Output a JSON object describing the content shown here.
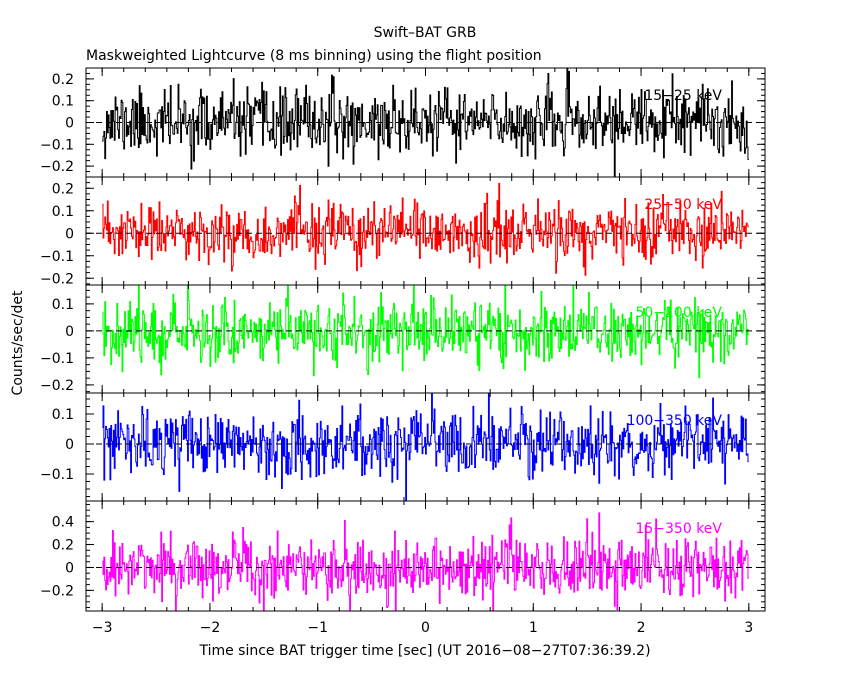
{
  "chart_data": {
    "type": "line",
    "title": "Swift–BAT GRB",
    "subtitle": "Maskweighted Lightcurve (8 ms binning) using the flight position",
    "xlabel": "Time since BAT trigger time [sec] (UT 2016−08−27T07:36:39.2)",
    "ylabel": "Counts/sec/det",
    "xlim": [
      -3.15,
      3.15
    ],
    "x_ticks": [
      -3,
      -2,
      -1,
      0,
      1,
      2,
      3
    ],
    "x_tick_labels": [
      "−3",
      "−2",
      "−1",
      "0",
      "1",
      "2",
      "3"
    ],
    "bin_width_sec": 0.008,
    "x_range_data": [
      -3,
      3
    ],
    "grid": false,
    "panels": [
      {
        "band_label": "15−25 keV",
        "color": "#000000",
        "ylim": [
          -0.25,
          0.25
        ],
        "y_ticks": [
          -0.2,
          -0.1,
          0,
          0.1,
          0.2
        ],
        "y_tick_labels": [
          "−0.2",
          "−0.1",
          "0",
          "0.1",
          "0.2"
        ],
        "noise_sigma": 0.075,
        "seed": 11
      },
      {
        "band_label": "25−50 keV",
        "color": "#ff0000",
        "ylim": [
          -0.23,
          0.25
        ],
        "y_ticks": [
          -0.2,
          -0.1,
          0,
          0.1,
          0.2
        ],
        "y_tick_labels": [
          "−0.2",
          "−0.1",
          "0",
          "0.1",
          "0.2"
        ],
        "noise_sigma": 0.065,
        "seed": 23
      },
      {
        "band_label": "50−100 keV",
        "color": "#00ff00",
        "ylim": [
          -0.23,
          0.17
        ],
        "y_ticks": [
          -0.2,
          -0.1,
          0,
          0.1
        ],
        "y_tick_labels": [
          "−0.2",
          "−0.1",
          "0",
          "0.1"
        ],
        "noise_sigma": 0.06,
        "seed": 37
      },
      {
        "band_label": "100−350 keV",
        "color": "#0000ff",
        "ylim": [
          -0.19,
          0.17
        ],
        "y_ticks": [
          -0.1,
          0,
          0.1
        ],
        "y_tick_labels": [
          "−0.1",
          "0",
          "0.1"
        ],
        "noise_sigma": 0.055,
        "seed": 53
      },
      {
        "band_label": "15−350 keV",
        "color": "#ff00ff",
        "ylim": [
          -0.38,
          0.58
        ],
        "y_ticks": [
          -0.2,
          0,
          0.2,
          0.4
        ],
        "y_tick_labels": [
          "−0.2",
          "0",
          "0.2",
          "0.4"
        ],
        "noise_sigma": 0.14,
        "seed": 71
      }
    ]
  }
}
